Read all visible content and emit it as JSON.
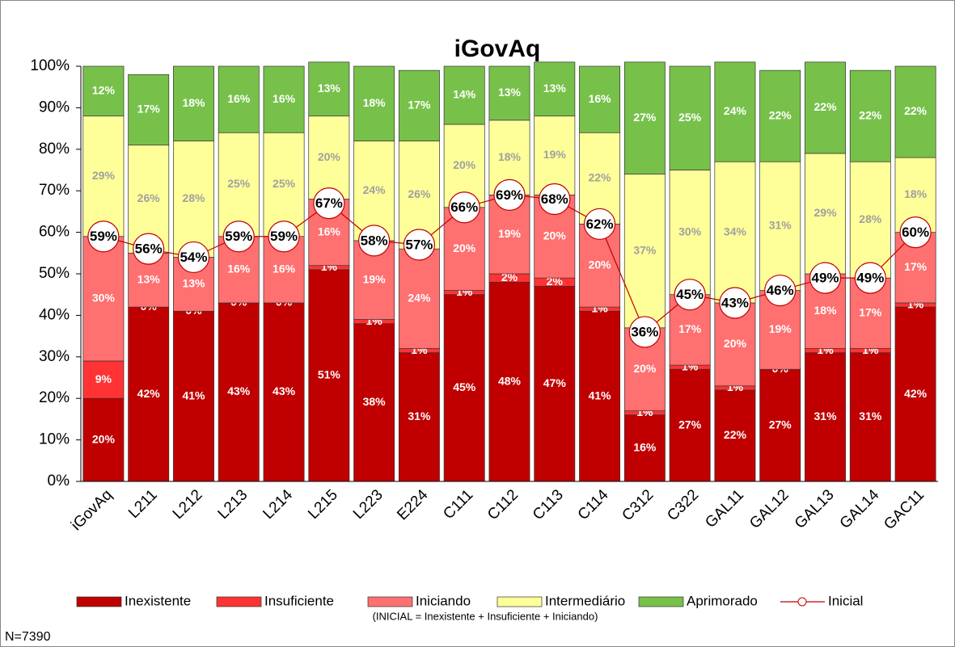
{
  "chart_data": {
    "type": "bar",
    "stacked": true,
    "title": "iGovAq",
    "categories": [
      "iGovAq",
      "L211",
      "L212",
      "L213",
      "L214",
      "L215",
      "L223",
      "E224",
      "C111",
      "C112",
      "C113",
      "C114",
      "C312",
      "C322",
      "GAL11",
      "GAL12",
      "GAL13",
      "GAL14",
      "GAC11"
    ],
    "series": [
      {
        "name": "Inexistente",
        "color": "#c00000",
        "label_color": "#ffffff",
        "values": [
          20,
          42,
          41,
          43,
          43,
          51,
          38,
          31,
          45,
          48,
          47,
          41,
          16,
          27,
          22,
          27,
          31,
          31,
          42
        ],
        "value_labels": [
          "20%",
          "42%",
          "41%",
          "43%",
          "43%",
          "51%",
          "38%",
          "31%",
          "45%",
          "48%",
          "47%",
          "41%",
          "16%",
          "27%",
          "22%",
          "27%",
          "31%",
          "31%",
          "42%"
        ]
      },
      {
        "name": "Insuficiente",
        "color": "#ff3333",
        "label_color": "#ffffff",
        "values": [
          9,
          0,
          0,
          0,
          0,
          1,
          1,
          1,
          1,
          2,
          2,
          1,
          1,
          1,
          1,
          0,
          1,
          1,
          1
        ],
        "value_labels": [
          "9%",
          "0%",
          "0%",
          "0%",
          "0%",
          "1%",
          "1%",
          "1%",
          "1%",
          "2%",
          "2%",
          "1%",
          "1%",
          "1%",
          "1%",
          "0%",
          "1%",
          "1%",
          "1%"
        ]
      },
      {
        "name": "Iniciando",
        "color": "#ff7070",
        "label_color": "#ffffff",
        "values": [
          30,
          13,
          13,
          16,
          16,
          16,
          19,
          24,
          20,
          19,
          20,
          20,
          20,
          17,
          20,
          19,
          18,
          17,
          17
        ],
        "value_labels": [
          "30%",
          "13%",
          "13%",
          "16%",
          "16%",
          "16%",
          "19%",
          "24%",
          "20%",
          "19%",
          "20%",
          "20%",
          "20%",
          "17%",
          "20%",
          "19%",
          "18%",
          "17%",
          "17%"
        ]
      },
      {
        "name": "Intermediário",
        "color": "#ffff99",
        "label_color": "#a0a0a0",
        "values": [
          29,
          26,
          28,
          25,
          25,
          20,
          24,
          26,
          20,
          18,
          19,
          22,
          37,
          30,
          34,
          31,
          29,
          28,
          18
        ],
        "value_labels": [
          "29%",
          "26%",
          "28%",
          "25%",
          "25%",
          "20%",
          "24%",
          "26%",
          "20%",
          "18%",
          "19%",
          "22%",
          "37%",
          "30%",
          "34%",
          "31%",
          "29%",
          "28%",
          "18%"
        ]
      },
      {
        "name": "Aprimorado",
        "color": "#77c14a",
        "label_color": "#ffffff",
        "values": [
          12,
          17,
          18,
          16,
          16,
          13,
          18,
          17,
          14,
          13,
          13,
          16,
          27,
          25,
          24,
          22,
          22,
          22,
          22
        ],
        "value_labels": [
          "12%",
          "17%",
          "18%",
          "16%",
          "16%",
          "13%",
          "18%",
          "17%",
          "14%",
          "13%",
          "13%",
          "16%",
          "27%",
          "25%",
          "24%",
          "22%",
          "22%",
          "22%",
          "22%"
        ]
      },
      {
        "name": "Inicial",
        "type": "line",
        "color": "#c00000",
        "values": [
          59,
          56,
          54,
          59,
          59,
          67,
          58,
          57,
          66,
          69,
          68,
          62,
          36,
          45,
          43,
          46,
          49,
          49,
          60
        ],
        "value_labels": [
          "59%",
          "56%",
          "54%",
          "59%",
          "59%",
          "67%",
          "58%",
          "57%",
          "66%",
          "69%",
          "68%",
          "62%",
          "36%",
          "45%",
          "43%",
          "46%",
          "49%",
          "49%",
          "60%"
        ]
      }
    ],
    "ylim": [
      0,
      100
    ],
    "yticks": [
      {
        "value": 0,
        "label": "0%"
      },
      {
        "value": 10,
        "label": "10%"
      },
      {
        "value": 20,
        "label": "20%"
      },
      {
        "value": 30,
        "label": "30%"
      },
      {
        "value": 40,
        "label": "40%"
      },
      {
        "value": 50,
        "label": "50%"
      },
      {
        "value": 60,
        "label": "60%"
      },
      {
        "value": 70,
        "label": "70%"
      },
      {
        "value": 80,
        "label": "80%"
      },
      {
        "value": 90,
        "label": "90%"
      },
      {
        "value": 100,
        "label": "100%"
      }
    ],
    "grid": false,
    "legend": "bottom",
    "legend_note": "(INICIAL = Inexistente + Insuficiente + Iniciando)",
    "footnote": "N=7390"
  }
}
